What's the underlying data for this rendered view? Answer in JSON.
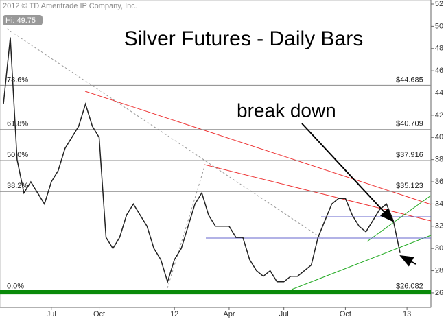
{
  "chart_data": {
    "type": "line",
    "title": "Silver Futures - Daily Bars",
    "source": "2012 © TD Ameritrade IP Company, Inc.",
    "high_label": "Hi: 49.75",
    "annotation": "break down",
    "color": "#222222",
    "categories": [
      null,
      null,
      null,
      null,
      null,
      null,
      null,
      "Jul",
      null,
      null,
      null,
      null,
      null,
      null,
      "Oct",
      null,
      null,
      null,
      null,
      null,
      null,
      null,
      null,
      null,
      null,
      "12",
      null,
      null,
      null,
      null,
      null,
      null,
      null,
      "Apr",
      null,
      null,
      null,
      null,
      null,
      null,
      null,
      "Jul",
      null,
      null,
      null,
      null,
      null,
      null,
      null,
      null,
      "Oct",
      null,
      null,
      null,
      null,
      null,
      null,
      null,
      null,
      "13",
      null,
      null,
      null
    ],
    "values": [
      43,
      49,
      38,
      35,
      36,
      35,
      34,
      36,
      37,
      39,
      40,
      41,
      43,
      41,
      40,
      31,
      30,
      31,
      33,
      34,
      33,
      32,
      30,
      29,
      27,
      29,
      30,
      32,
      34,
      35,
      33,
      32,
      32,
      32,
      31,
      31,
      29,
      28,
      27.5,
      28,
      27,
      27,
      27.5,
      27.5,
      28,
      28.5,
      31,
      32.5,
      34,
      34.5,
      34.5,
      33,
      32,
      31.5,
      32.5,
      33.5,
      34,
      32.5,
      29.6,
      null,
      null,
      null,
      null
    ],
    "ylim": [
      24.7,
      52.37
    ],
    "yticks": [
      26,
      28,
      30,
      32,
      34,
      36,
      38,
      40,
      42,
      44,
      46,
      48,
      50,
      52
    ],
    "grid": false,
    "fib_levels": {
      "labels": [
        "78.6%",
        "61.8%",
        "50.0%",
        "38.2%",
        "0.0%"
      ],
      "values": [
        44.685,
        40.709,
        37.916,
        35.123,
        26.082
      ],
      "value_labels": [
        "$44.685",
        "$40.709",
        "$37.916",
        "$35.123",
        "$26.082"
      ],
      "colors": [
        "#8a8a8a",
        "#8a8a8a",
        "#8a8a8a",
        "#8a8a8a",
        "#0a8a0a"
      ]
    }
  }
}
